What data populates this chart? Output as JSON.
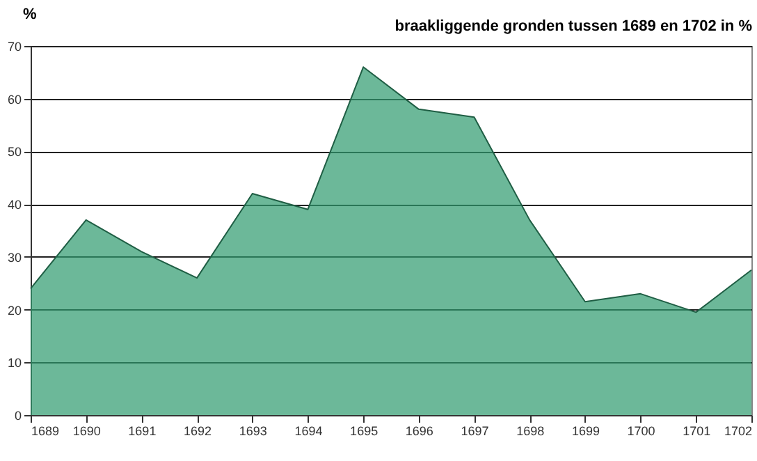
{
  "chart_data": {
    "type": "area",
    "title": "braakliggende gronden tussen 1689 en 1702 in %",
    "ylabel": "%",
    "categories": [
      "1689",
      "1690",
      "1691",
      "1692",
      "1693",
      "1694",
      "1695",
      "1696",
      "1697",
      "1698",
      "1699",
      "1700",
      "1701",
      "1702"
    ],
    "series": [
      {
        "color": "#2e9a6e",
        "values": [
          24,
          37,
          31,
          26,
          42,
          39,
          66,
          58,
          56.5,
          37,
          21.5,
          23,
          19.5,
          27.5
        ]
      }
    ],
    "ylim": [
      0,
      70
    ],
    "yticks": [
      0,
      10,
      20,
      30,
      40,
      50,
      60,
      70
    ],
    "grid": "y"
  }
}
